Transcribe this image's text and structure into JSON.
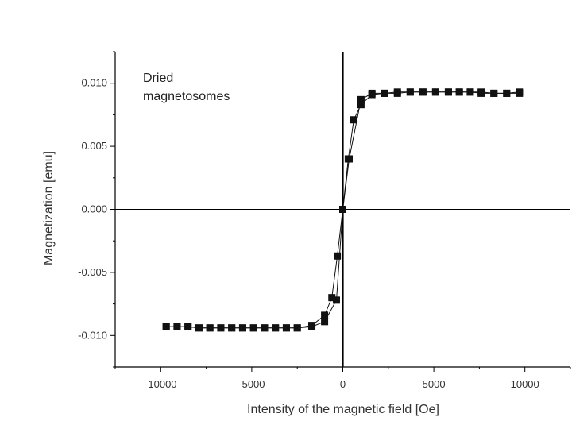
{
  "chart_data": {
    "type": "scatter",
    "xlabel": "Intensity of the magnetic field [Oe]",
    "ylabel": "Magnetization [emu]",
    "xlim": [
      -12500,
      12500
    ],
    "ylim": [
      -0.0125,
      0.0125
    ],
    "x_ticks": [
      -10000,
      -5000,
      0,
      5000,
      10000
    ],
    "x_tick_labels": [
      "-10000",
      "-5000",
      "0",
      "5000",
      "10000"
    ],
    "y_ticks": [
      -0.01,
      -0.005,
      0.0,
      0.005,
      0.01
    ],
    "y_tick_labels": [
      "-0.010",
      "-0.005",
      "0.000",
      "0.005",
      "0.010"
    ],
    "grid": false,
    "annotation": [
      "Dried",
      "magnetosomes"
    ],
    "colors": {
      "marker": "#111111",
      "line": "#111111",
      "axis": "#000000"
    },
    "series": [
      {
        "values": [
          [
            -9700,
            -0.0093
          ],
          [
            -9100,
            -0.0093
          ],
          [
            -8500,
            -0.0093
          ],
          [
            -7900,
            -0.0094
          ],
          [
            -7300,
            -0.0094
          ],
          [
            -6700,
            -0.0094
          ],
          [
            -6100,
            -0.0094
          ],
          [
            -5500,
            -0.0094
          ],
          [
            -4900,
            -0.0094
          ],
          [
            -4300,
            -0.0094
          ],
          [
            -3700,
            -0.0094
          ],
          [
            -3100,
            -0.0094
          ],
          [
            -2500,
            -0.0094
          ],
          [
            -1700,
            -0.0093
          ],
          [
            -1000,
            -0.0089
          ],
          [
            -350,
            -0.0072
          ],
          [
            0,
            0.0
          ],
          [
            300,
            0.004
          ],
          [
            600,
            0.0071
          ],
          [
            1000,
            0.0083
          ],
          [
            1600,
            0.0091
          ],
          [
            2300,
            0.0092
          ],
          [
            3000,
            0.0092
          ],
          [
            3700,
            0.0093
          ],
          [
            4400,
            0.0093
          ],
          [
            5100,
            0.0093
          ],
          [
            5800,
            0.0093
          ],
          [
            6400,
            0.0093
          ],
          [
            7000,
            0.0093
          ],
          [
            7600,
            0.0092
          ],
          [
            8300,
            0.0092
          ],
          [
            9000,
            0.0092
          ],
          [
            9700,
            0.0092
          ]
        ]
      },
      {
        "values": [
          [
            9700,
            0.0093
          ],
          [
            9000,
            0.0092
          ],
          [
            8300,
            0.0092
          ],
          [
            7600,
            0.0093
          ],
          [
            7000,
            0.0093
          ],
          [
            6400,
            0.0093
          ],
          [
            5800,
            0.0093
          ],
          [
            5100,
            0.0093
          ],
          [
            4400,
            0.0093
          ],
          [
            3700,
            0.0093
          ],
          [
            3000,
            0.0093
          ],
          [
            2300,
            0.0092
          ],
          [
            1600,
            0.0092
          ],
          [
            1000,
            0.0087
          ],
          [
            350,
            0.004
          ],
          [
            0,
            0.0
          ],
          [
            -300,
            -0.0037
          ],
          [
            -600,
            -0.007
          ],
          [
            -1000,
            -0.0084
          ],
          [
            -1700,
            -0.0092
          ],
          [
            -2500,
            -0.0094
          ],
          [
            -3100,
            -0.0094
          ],
          [
            -3700,
            -0.0094
          ],
          [
            -4300,
            -0.0094
          ],
          [
            -4900,
            -0.0094
          ],
          [
            -5500,
            -0.0094
          ],
          [
            -6100,
            -0.0094
          ],
          [
            -6700,
            -0.0094
          ],
          [
            -7300,
            -0.0094
          ],
          [
            -7900,
            -0.0094
          ],
          [
            -8500,
            -0.0093
          ],
          [
            -9100,
            -0.0093
          ],
          [
            -9700,
            -0.0093
          ]
        ]
      }
    ]
  }
}
